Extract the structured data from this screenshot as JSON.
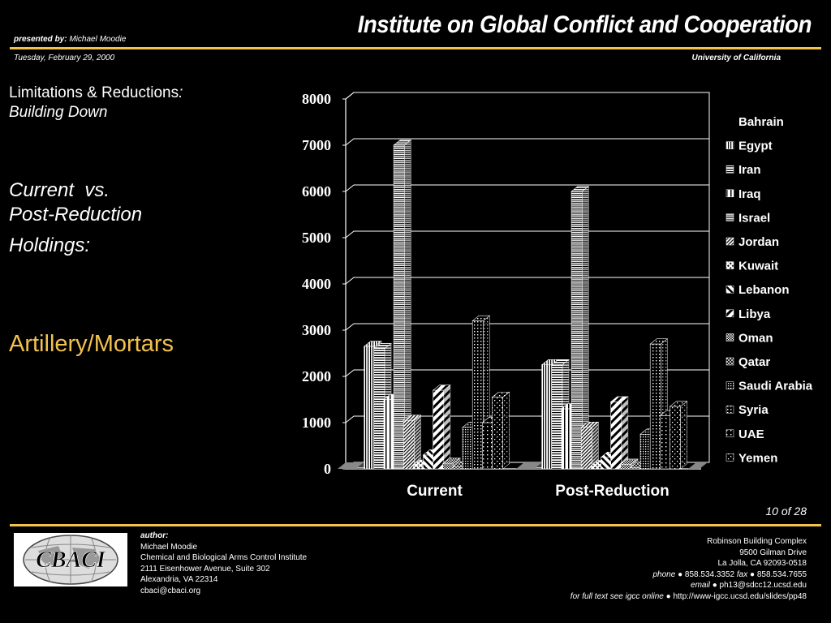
{
  "header": {
    "title": "Institute on Global Conflict and Cooperation",
    "presented_label": "presented by:",
    "presenter": "Michael Moodie",
    "date": "Tuesday, February 29, 2000",
    "university": "University of California"
  },
  "left_panel": {
    "line1": "Limitations & Reductions",
    "line1_colon": ":",
    "line2": "Building Down",
    "line3": "Current  vs.",
    "line4": "Post-Reduction",
    "line5": "Holdings:",
    "topic": "Artillery/Mortars"
  },
  "page_number": "10 of 28",
  "footer": {
    "logo_text": "CBACI",
    "author_label": "author:",
    "author_lines": [
      "Michael Moodie",
      "Chemical and Biological Arms Control Institute",
      "2111 Eisenhower Avenue, Suite 302",
      "Alexandria, VA 22314",
      "cbaci@cbaci.org"
    ],
    "address_lines": [
      "Robinson Building Complex",
      "9500 Gilman Drive",
      "La Jolla, CA 92093-0518"
    ],
    "phone_label": "phone",
    "phone": "858.534.3352",
    "fax_label": "fax",
    "fax": "858.534.7655",
    "email_label": "email",
    "email": "ph13@sdcc12.ucsd.edu",
    "fulltext_label": "for full text see igcc online",
    "fulltext_url": "http://www-igcc.ucsd.edu/slides/pp48",
    "bullet": "●"
  },
  "colors": {
    "accent": "#f2c14e",
    "background": "#000000",
    "text": "#ffffff"
  },
  "chart_data": {
    "type": "bar",
    "style": "3d-clustered",
    "title": "",
    "xlabel": "",
    "ylabel": "",
    "ylim": [
      0,
      8000
    ],
    "yticks": [
      0,
      1000,
      2000,
      3000,
      4000,
      5000,
      6000,
      7000,
      8000
    ],
    "grid": true,
    "legend_position": "right",
    "categories": [
      "Current",
      "Post-Reduction"
    ],
    "series": [
      {
        "name": "Bahrain",
        "values": [
          30,
          30
        ],
        "pattern": "none"
      },
      {
        "name": "Egypt",
        "values": [
          2650,
          2250
        ],
        "pattern": "vlines"
      },
      {
        "name": "Iran",
        "values": [
          2600,
          2250
        ],
        "pattern": "hlines"
      },
      {
        "name": "Iraq",
        "values": [
          1500,
          1300
        ],
        "pattern": "vlines-wide"
      },
      {
        "name": "Israel",
        "values": [
          7000,
          6000
        ],
        "pattern": "hlines-dense"
      },
      {
        "name": "Jordan",
        "values": [
          1050,
          900
        ],
        "pattern": "diag-dense"
      },
      {
        "name": "Kuwait",
        "values": [
          80,
          70
        ],
        "pattern": "diag-checker"
      },
      {
        "name": "Lebanon",
        "values": [
          300,
          250
        ],
        "pattern": "diag-wide"
      },
      {
        "name": "Libya",
        "values": [
          1700,
          1450
        ],
        "pattern": "diag-bold"
      },
      {
        "name": "Oman",
        "values": [
          120,
          100
        ],
        "pattern": "checker"
      },
      {
        "name": "Qatar",
        "values": [
          40,
          30
        ],
        "pattern": "crosshatch"
      },
      {
        "name": "Saudi Arabia",
        "values": [
          900,
          750
        ],
        "pattern": "dots-dense"
      },
      {
        "name": "Syria",
        "values": [
          3200,
          2700
        ],
        "pattern": "dots-grid"
      },
      {
        "name": "UAE",
        "values": [
          1000,
          1150
        ],
        "pattern": "dots-sparse"
      },
      {
        "name": "Yemen",
        "values": [
          1550,
          1350
        ],
        "pattern": "dots-scatter"
      }
    ]
  }
}
